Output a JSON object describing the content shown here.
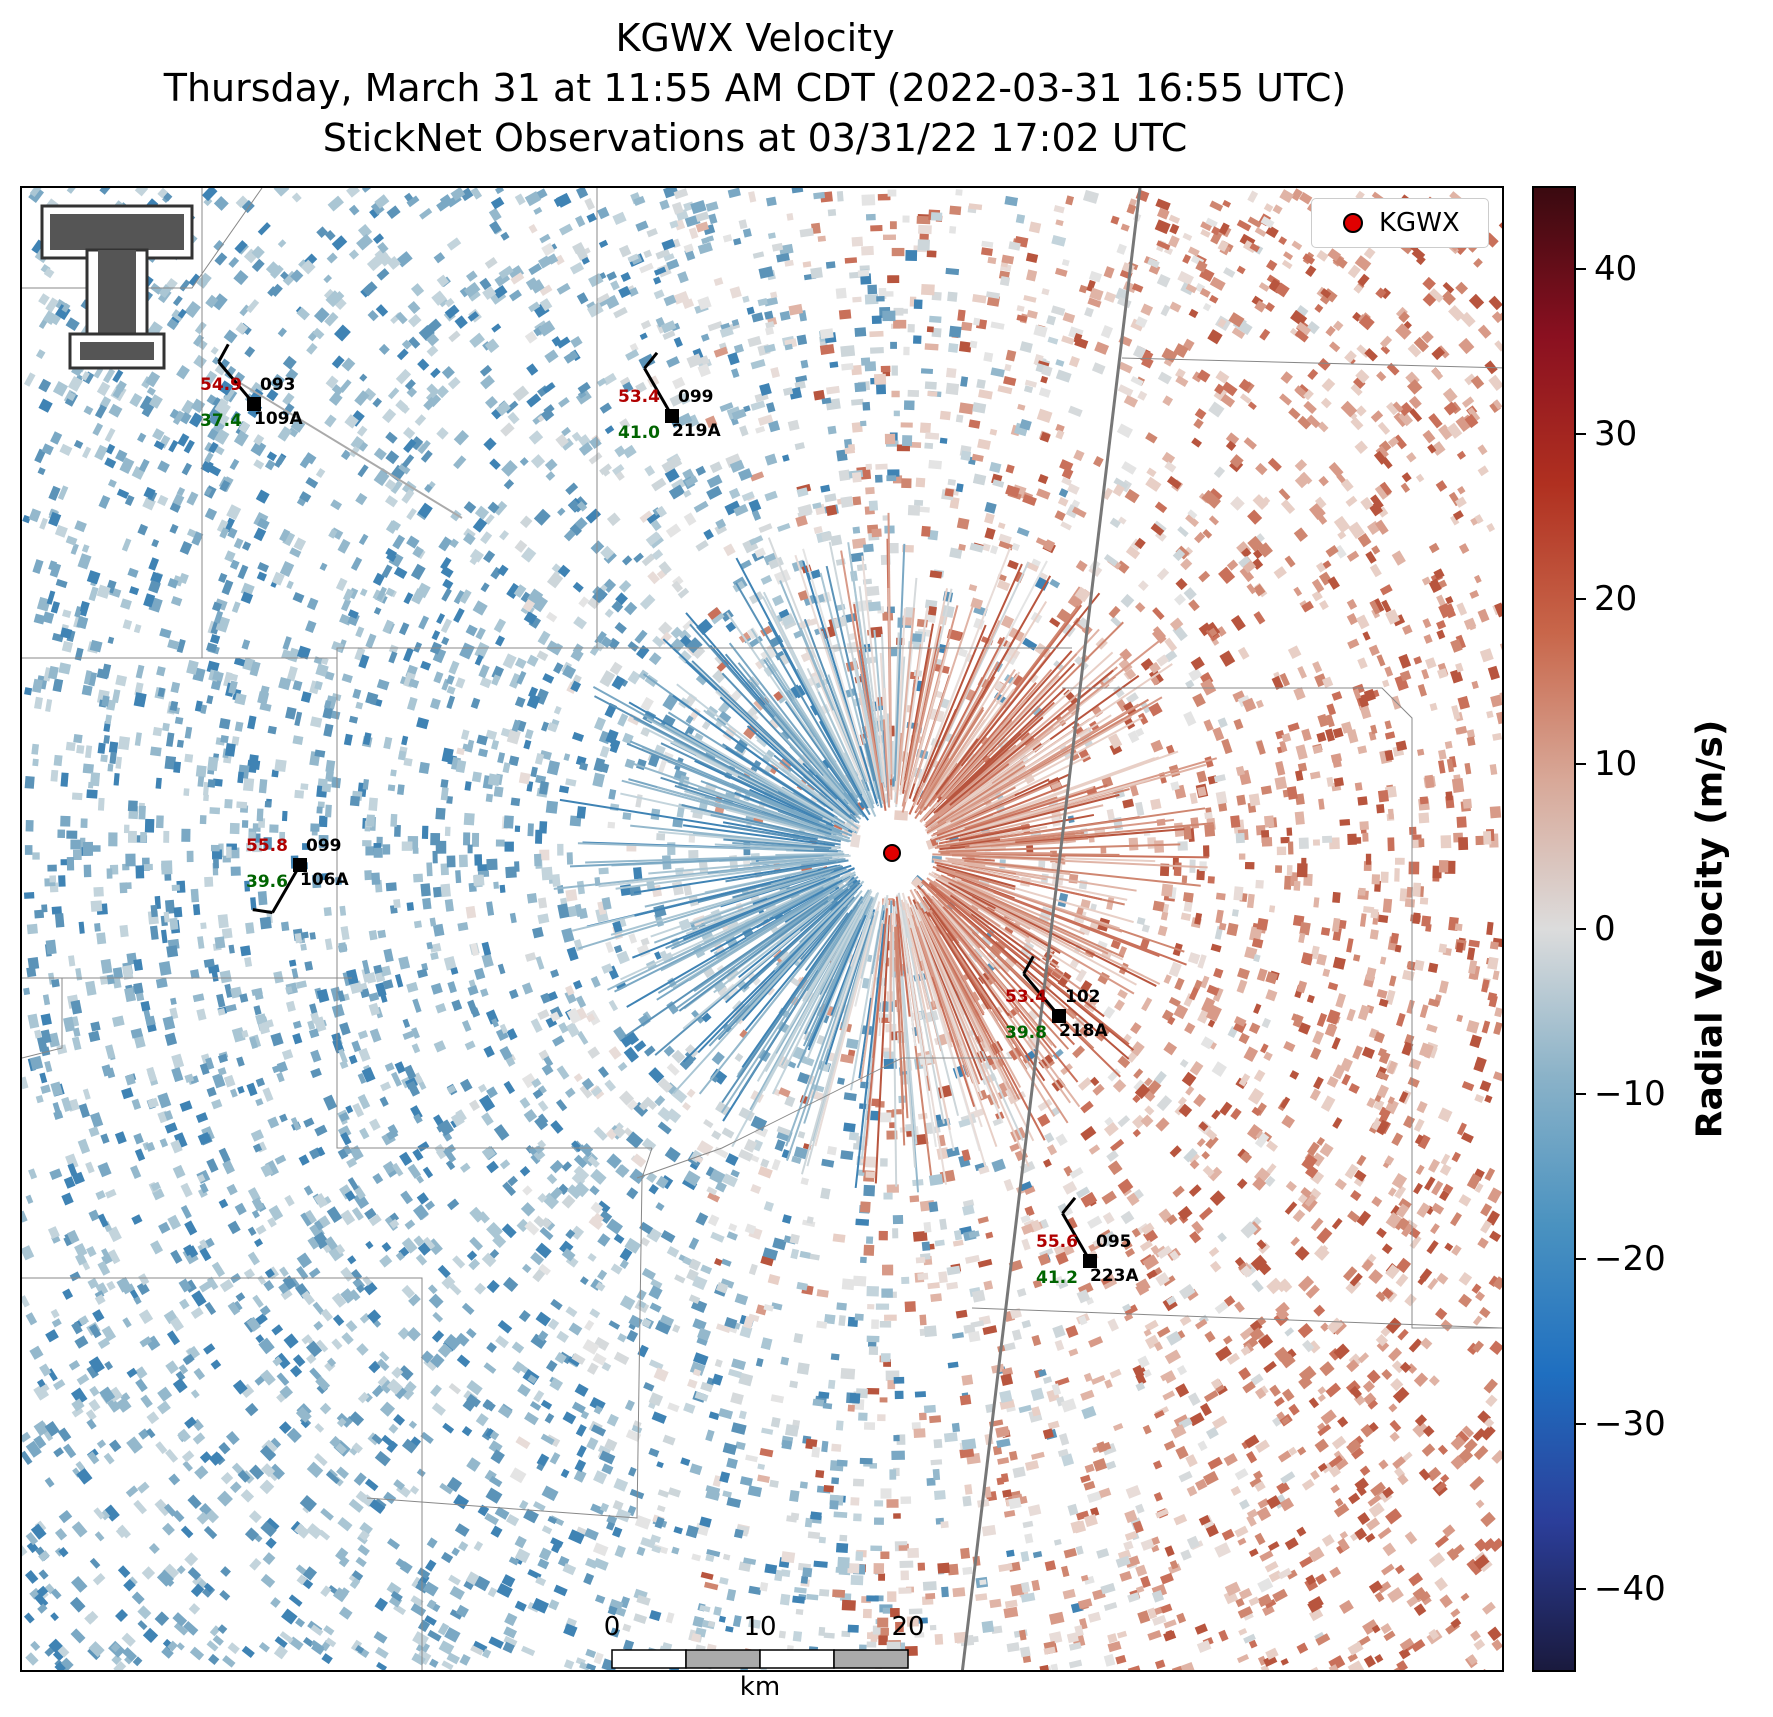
{
  "title": {
    "line1": "KGWX Velocity",
    "line2": "Thursday, March 31 at 11:55 AM CDT (2022-03-31 16:55 UTC)",
    "line3": "StickNet Observations at 03/31/22 17:02 UTC"
  },
  "legend": {
    "label": "KGWX",
    "marker_color": "#e00000"
  },
  "colorbar": {
    "label": "Radial Velocity (m/s)",
    "range": [
      -45,
      45
    ],
    "ticks": [
      "40",
      "30",
      "20",
      "10",
      "0",
      "−10",
      "−20",
      "−30",
      "−40"
    ],
    "tick_values": [
      40,
      30,
      20,
      10,
      0,
      -10,
      -20,
      -30,
      -40
    ],
    "colors": [
      "#1a1a3e",
      "#2b3e9a",
      "#1f6fc0",
      "#4a92c0",
      "#8ab2c8",
      "#dcdcdc",
      "#d8a898",
      "#c8664a",
      "#b03020",
      "#8a1020",
      "#3a0a10"
    ]
  },
  "stations": [
    {
      "id": "109A",
      "temp": "54.9",
      "dew": "37.4",
      "pres": "093",
      "dir": 320
    },
    {
      "id": "219A",
      "temp": "53.4",
      "dew": "41.0",
      "pres": "099",
      "dir": 330
    },
    {
      "id": "106A",
      "temp": "55.8",
      "dew": "39.6",
      "pres": "099",
      "dir": 210
    },
    {
      "id": "218A",
      "temp": "53.4",
      "dew": "39.8",
      "pres": "102",
      "dir": 320
    },
    {
      "id": "223A",
      "temp": "55.6",
      "dew": "41.2",
      "pres": "095",
      "dir": 330
    }
  ],
  "scalebar": {
    "labels": [
      "0",
      "10",
      "20"
    ],
    "unit": "km"
  },
  "logo": "texas-tech-double-t-logo"
}
